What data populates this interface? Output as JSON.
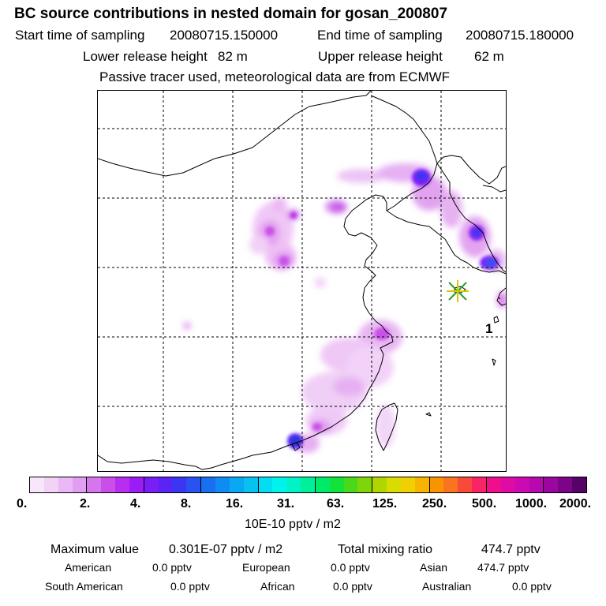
{
  "title": "BC  source contributions in nested domain for gosan_200807",
  "sampling": {
    "start_label": "Start time of sampling",
    "start_value": "20080715.150000",
    "end_label": "End time of sampling",
    "end_value": "20080715.180000"
  },
  "release": {
    "lower_label": "Lower release height",
    "lower_value": "82 m",
    "upper_label": "Upper release height",
    "upper_value": "62 m"
  },
  "note": "Passive tracer used, meteorological data are from ECMWF",
  "map": {
    "receptor_label": "1",
    "colors": {
      "coast": "#000000",
      "grid": "#000000",
      "receptor_star_a": "#2aa02a",
      "receptor_star_b": "#d8c800"
    }
  },
  "colorbar": {
    "colors": [
      "#f8e6fa",
      "#f2d2f7",
      "#eab8f4",
      "#e29ef0",
      "#d676ec",
      "#c94fe8",
      "#b82ef0",
      "#9b1df5",
      "#7a1ef7",
      "#5a24f5",
      "#3a36f2",
      "#2a52f0",
      "#1a6ff0",
      "#0f8cf2",
      "#0aa8f2",
      "#07c2f0",
      "#04dcf0",
      "#00f2ec",
      "#00f2c8",
      "#00f09a",
      "#00ea6a",
      "#12e23a",
      "#4ad81a",
      "#80d40a",
      "#b0d600",
      "#d8dc00",
      "#f0d000",
      "#f8b400",
      "#f89400",
      "#f87420",
      "#f84a3a",
      "#f82466",
      "#f00e8c",
      "#e00aa4",
      "#cc0ab2",
      "#b808b0",
      "#9c06a0",
      "#7c0488",
      "#560268"
    ],
    "ticks": [
      "0.",
      "2.",
      "4.",
      "8.",
      "16.",
      "31.",
      "63.",
      "125.",
      "250.",
      "500.",
      "1000.",
      "2000."
    ],
    "unit": "10E-10 pptv / m2"
  },
  "stats": {
    "max_label": "Maximum value",
    "max_value": "0.301E-07 pptv / m2",
    "total_label": "Total mixing ratio",
    "total_value": "474.7 pptv",
    "american_label": "American",
    "american_value": "0.0 pptv",
    "european_label": "European",
    "european_value": "0.0 pptv",
    "asian_label": "Asian",
    "asian_value": "474.7 pptv",
    "south_american_label": "South American",
    "south_american_value": "0.0 pptv",
    "african_label": "African",
    "african_value": "0.0 pptv",
    "australian_label": "Australian",
    "australian_value": "0.0 pptv"
  }
}
